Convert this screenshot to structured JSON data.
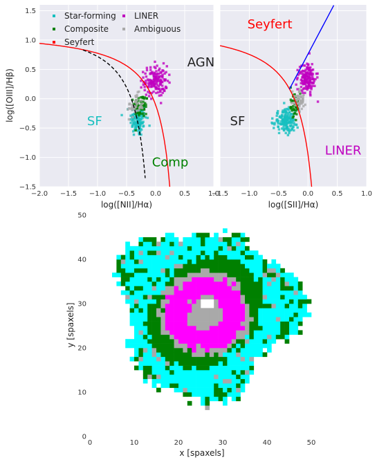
{
  "chart_data": [
    {
      "type": "scatter",
      "xlabel": "log([NII]/Hα)",
      "ylabel": "log([OIII]/Hβ)",
      "xlim": [
        -2.0,
        0.0
      ],
      "ylim": [
        -1.5,
        1.6
      ],
      "xticks": [
        "−2.0",
        "−1.5",
        "−1.0",
        "−0.5",
        "0.0",
        "0.5",
        "1.0"
      ],
      "yticks": [
        "−1.5",
        "−1.0",
        "−0.5",
        "0.0",
        "0.5",
        "1.0",
        "1.5"
      ],
      "grid": true,
      "legend_placement": "top-left",
      "legend": [
        {
          "label": "Star-forming",
          "color": "#17bfbf"
        },
        {
          "label": "LINER",
          "color": "#bf00bf"
        },
        {
          "label": "Composite",
          "color": "#008000"
        },
        {
          "label": "Ambiguous",
          "color": "#a9a9a9"
        },
        {
          "label": "Seyfert",
          "color": "#ff0000"
        }
      ],
      "region_labels": [
        {
          "text": "AGN",
          "x": 0.78,
          "y": 0.55,
          "color": "#222222"
        },
        {
          "text": "SF",
          "x": -1.05,
          "y": -0.45,
          "color": "#17bfbf"
        },
        {
          "text": "Comp",
          "x": 0.25,
          "y": -1.15,
          "color": "#008000"
        }
      ],
      "series": [
        {
          "name": "Star-forming",
          "color": "#17bfbf",
          "center": [
            -0.3,
            -0.35
          ],
          "spread": [
            0.07,
            0.15
          ],
          "count": 140
        },
        {
          "name": "Composite",
          "color": "#008000",
          "center": [
            -0.25,
            -0.12
          ],
          "spread": [
            0.06,
            0.1
          ],
          "count": 60
        },
        {
          "name": "Ambiguous",
          "color": "#a9a9a9",
          "center": [
            -0.35,
            -0.12
          ],
          "spread": [
            0.07,
            0.1
          ],
          "count": 40
        },
        {
          "name": "LINER",
          "color": "#bf00bf",
          "center": [
            0.0,
            0.3
          ],
          "spread": [
            0.1,
            0.13
          ],
          "count": 150
        }
      ],
      "lines": [
        {
          "name": "Kewley",
          "color": "#ff0000",
          "style": "solid"
        },
        {
          "name": "Kauffmann",
          "color": "#000000",
          "style": "dashed"
        }
      ]
    },
    {
      "type": "scatter",
      "xlabel": "log([SII]/Hα)",
      "ylabel": "",
      "xlim": [
        -1.5,
        1.0
      ],
      "ylim": [
        -1.5,
        1.6
      ],
      "xticks": [
        "−1.5",
        "−1.0",
        "−0.5",
        "0.0",
        "0.5",
        "1.0"
      ],
      "grid": true,
      "region_labels": [
        {
          "text": "Seyfert",
          "x": -0.65,
          "y": 1.2,
          "color": "#ff0000"
        },
        {
          "text": "SF",
          "x": -1.2,
          "y": -0.45,
          "color": "#222222"
        },
        {
          "text": "LINER",
          "x": 0.6,
          "y": -0.95,
          "color": "#bf00bf"
        }
      ],
      "series": [
        {
          "name": "Star-forming",
          "color": "#17bfbf",
          "center": [
            -0.38,
            -0.38
          ],
          "spread": [
            0.1,
            0.1
          ],
          "count": 160
        },
        {
          "name": "Composite",
          "color": "#008000",
          "center": [
            -0.23,
            -0.12
          ],
          "spread": [
            0.05,
            0.1
          ],
          "count": 40
        },
        {
          "name": "Ambiguous",
          "color": "#a9a9a9",
          "center": [
            -0.14,
            -0.02
          ],
          "spread": [
            0.06,
            0.08
          ],
          "count": 50
        },
        {
          "name": "LINER",
          "color": "#bf00bf",
          "center": [
            -0.02,
            0.35
          ],
          "spread": [
            0.07,
            0.12
          ],
          "count": 150
        }
      ],
      "lines": [
        {
          "name": "Kewley SF",
          "color": "#ff0000",
          "style": "solid"
        },
        {
          "name": "Seyfert-LINER",
          "color": "#0000ff",
          "style": "solid"
        }
      ]
    },
    {
      "type": "heatmap",
      "xlabel": "x [spaxels]",
      "ylabel": "y [spaxels]",
      "xlim": [
        0,
        50
      ],
      "ylim": [
        0,
        50
      ],
      "xticks": [
        "0",
        "10",
        "20",
        "30",
        "40",
        "50"
      ],
      "yticks": [
        "0",
        "10",
        "20",
        "30",
        "40",
        "50"
      ],
      "center": [
        26,
        28
      ],
      "categories": [
        {
          "name": "Star-forming",
          "color": "#00ffff"
        },
        {
          "name": "Composite",
          "color": "#008000"
        },
        {
          "name": "Ambiguous",
          "color": "#a9a9a9"
        },
        {
          "name": "LINER",
          "color": "#ff00ff"
        }
      ]
    }
  ]
}
